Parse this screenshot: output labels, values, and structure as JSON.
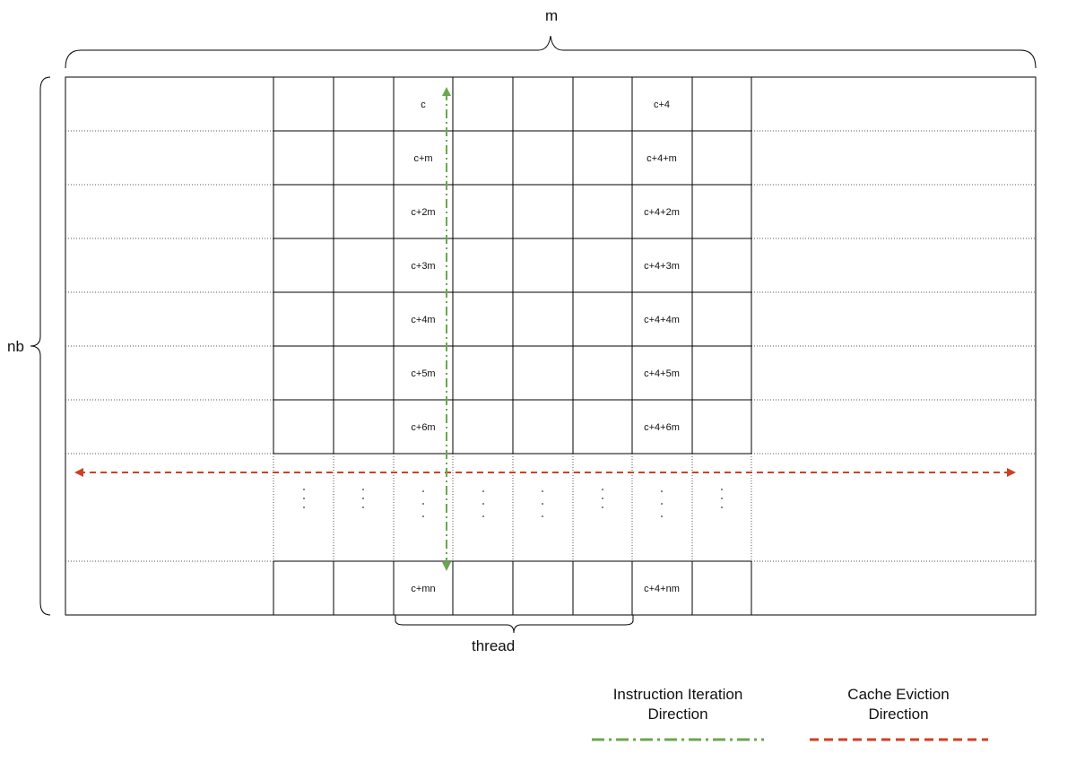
{
  "labels": {
    "m": "m",
    "nb": "nb",
    "thread": "thread"
  },
  "cells": {
    "column_c": [
      "c",
      "c+m",
      "c+2m",
      "c+3m",
      "c+4m",
      "c+5m",
      "c+6m"
    ],
    "column_c4": [
      "c+4",
      "c+4+m",
      "c+4+2m",
      "c+4+3m",
      "c+4+4m",
      "c+4+5m",
      "c+4+6m"
    ],
    "last_c": "c+mn",
    "last_c4": "c+4+nm"
  },
  "legend": {
    "instruction": {
      "label_line1": "Instruction Iteration",
      "label_line2": "Direction",
      "color": "#6aa84f"
    },
    "eviction": {
      "label_line1": "Cache Eviction",
      "label_line2": "Direction",
      "color": "#cc4125"
    }
  },
  "colors": {
    "grid": "#000000",
    "dotted": "#666666",
    "instruction_arrow": "#6aa84f",
    "eviction_arrow": "#cc4125"
  }
}
